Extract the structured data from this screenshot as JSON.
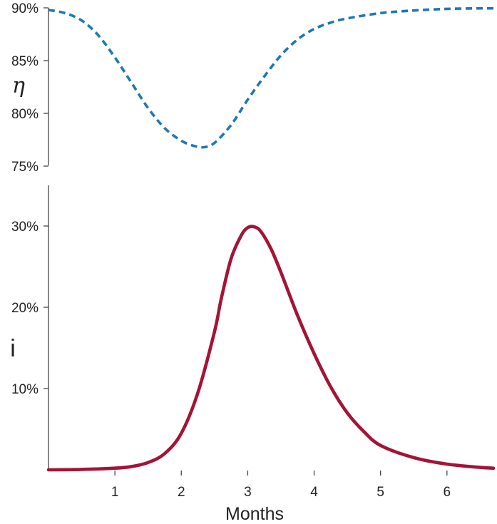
{
  "chart_data": [
    {
      "type": "line",
      "ylabel": "η",
      "ylim": [
        75,
        90
      ],
      "xlim": [
        0,
        6.7
      ],
      "yticks": [
        "75%",
        "80%",
        "85%",
        "90%"
      ],
      "grid": false,
      "series": [
        {
          "style": "dashed",
          "color": "#1f77b4",
          "x": [
            0,
            0.25,
            0.5,
            0.75,
            1.0,
            1.25,
            1.5,
            1.75,
            2.0,
            2.2,
            2.35,
            2.5,
            2.75,
            3.0,
            3.25,
            3.5,
            3.75,
            4.0,
            4.25,
            4.5,
            5.0,
            5.5,
            6.0,
            6.5,
            6.7
          ],
          "y": [
            89.8,
            89.5,
            88.8,
            87.4,
            85.3,
            82.9,
            80.5,
            78.6,
            77.4,
            76.9,
            76.8,
            77.2,
            78.9,
            81.3,
            83.5,
            85.5,
            87.0,
            88.0,
            88.6,
            89.0,
            89.5,
            89.75,
            89.9,
            89.95,
            89.95
          ]
        }
      ]
    },
    {
      "type": "line",
      "ylabel": "i",
      "xlabel": "Months",
      "ylim": [
        0,
        35
      ],
      "xlim": [
        0,
        6.7
      ],
      "yticks": [
        "10%",
        "20%",
        "30%"
      ],
      "xticks": [
        "1",
        "2",
        "3",
        "4",
        "5",
        "6"
      ],
      "grid": false,
      "series": [
        {
          "style": "solid",
          "color": "#a31436",
          "x": [
            0,
            0.5,
            1.0,
            1.25,
            1.5,
            1.75,
            2.0,
            2.25,
            2.5,
            2.6,
            2.75,
            2.9,
            3.0,
            3.1,
            3.2,
            3.35,
            3.5,
            3.75,
            4.0,
            4.25,
            4.5,
            4.75,
            5.0,
            5.5,
            6.0,
            6.5,
            6.7
          ],
          "y": [
            0,
            0.05,
            0.2,
            0.4,
            0.9,
            2.0,
            4.5,
            9.5,
            17.0,
            21.0,
            26.0,
            28.8,
            29.8,
            29.9,
            29.3,
            27.2,
            24.3,
            19.0,
            14.3,
            10.2,
            7.0,
            4.7,
            3.0,
            1.5,
            0.7,
            0.3,
            0.2
          ]
        }
      ]
    }
  ]
}
